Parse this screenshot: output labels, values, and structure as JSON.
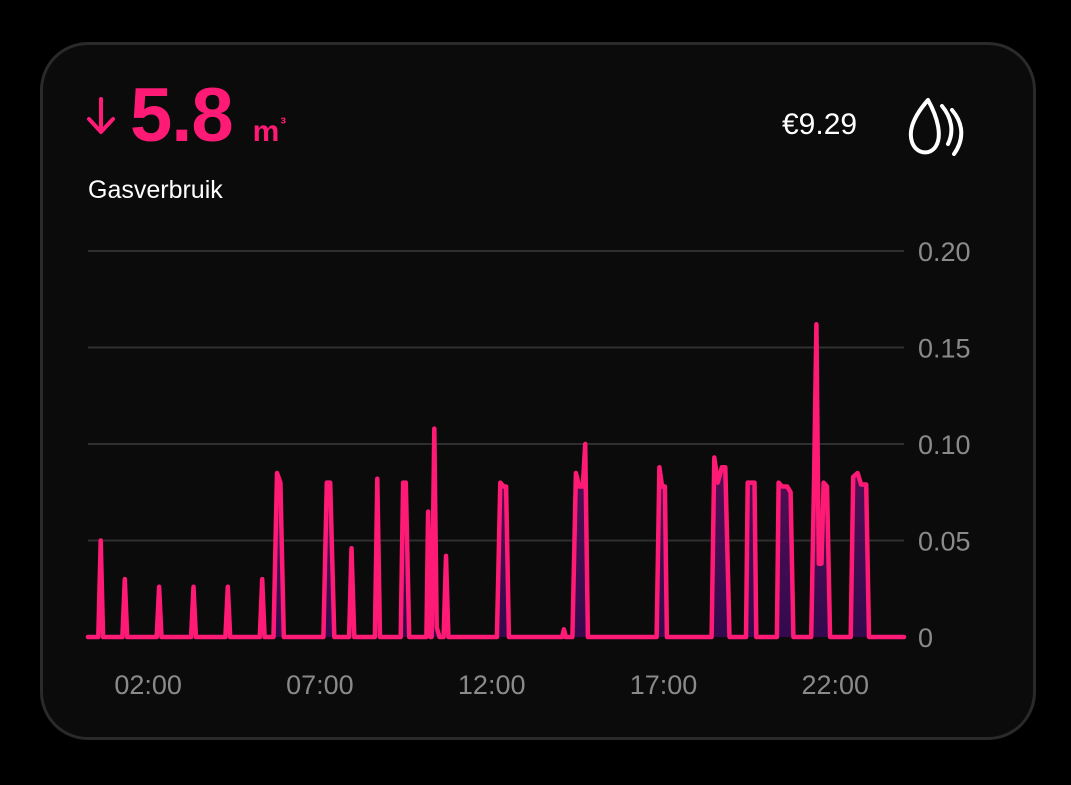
{
  "header": {
    "trend_icon": "arrow-down-icon",
    "value": "5.8",
    "unit": "m",
    "unit_sup": "³",
    "title": "Gasverbruik",
    "cost": "€9.29",
    "gas_icon": "gas-flame-icon"
  },
  "colors": {
    "accent": "#ff1a75",
    "fill_top": "#7a1266",
    "fill_bottom": "#3a0a5a",
    "grid": "#2f2f2f",
    "tick": "#8a8a8a"
  },
  "chart_data": {
    "type": "area",
    "x_unit": "hour",
    "xlim": [
      0.25,
      24
    ],
    "ylim": [
      0,
      0.2
    ],
    "yticks": [
      {
        "value": 0,
        "label": "0"
      },
      {
        "value": 0.05,
        "label": "0.05"
      },
      {
        "value": 0.1,
        "label": "0.10"
      },
      {
        "value": 0.15,
        "label": "0.15"
      },
      {
        "value": 0.2,
        "label": "0.20"
      }
    ],
    "xticks": [
      {
        "value": 2,
        "label": "02:00"
      },
      {
        "value": 7,
        "label": "07:00"
      },
      {
        "value": 12,
        "label": "12:00"
      },
      {
        "value": 17,
        "label": "17:00"
      },
      {
        "value": 22,
        "label": "22:00"
      }
    ],
    "grid": true,
    "series": [
      {
        "points": [
          [
            0.25,
            0
          ],
          [
            0.55,
            0
          ],
          [
            0.62,
            0.05
          ],
          [
            0.69,
            0
          ],
          [
            1.25,
            0
          ],
          [
            1.32,
            0.03
          ],
          [
            1.39,
            0
          ],
          [
            2.25,
            0
          ],
          [
            2.32,
            0.026
          ],
          [
            2.39,
            0
          ],
          [
            3.25,
            0
          ],
          [
            3.32,
            0.026
          ],
          [
            3.39,
            0
          ],
          [
            4.25,
            0
          ],
          [
            4.32,
            0.026
          ],
          [
            4.39,
            0
          ],
          [
            5.25,
            0
          ],
          [
            5.32,
            0.03
          ],
          [
            5.39,
            0
          ],
          [
            5.65,
            0
          ],
          [
            5.75,
            0.085
          ],
          [
            5.85,
            0.08
          ],
          [
            5.95,
            0
          ],
          [
            7.1,
            0
          ],
          [
            7.2,
            0.08
          ],
          [
            7.3,
            0.08
          ],
          [
            7.42,
            0
          ],
          [
            7.85,
            0
          ],
          [
            7.92,
            0.046
          ],
          [
            8.0,
            0
          ],
          [
            8.6,
            0
          ],
          [
            8.67,
            0.082
          ],
          [
            8.75,
            0
          ],
          [
            9.35,
            0
          ],
          [
            9.42,
            0.08
          ],
          [
            9.5,
            0.08
          ],
          [
            9.6,
            0
          ],
          [
            10.1,
            0
          ],
          [
            10.15,
            0.065
          ],
          [
            10.22,
            0
          ],
          [
            10.25,
            0
          ],
          [
            10.33,
            0.108
          ],
          [
            10.4,
            0.005
          ],
          [
            10.48,
            0
          ],
          [
            10.6,
            0
          ],
          [
            10.67,
            0.042
          ],
          [
            10.74,
            0
          ],
          [
            12.15,
            0
          ],
          [
            12.25,
            0.08
          ],
          [
            12.35,
            0.078
          ],
          [
            12.42,
            0.078
          ],
          [
            12.5,
            0
          ],
          [
            14.05,
            0
          ],
          [
            14.1,
            0.004
          ],
          [
            14.16,
            0
          ],
          [
            14.35,
            0
          ],
          [
            14.45,
            0.085
          ],
          [
            14.55,
            0.078
          ],
          [
            14.65,
            0.078
          ],
          [
            14.72,
            0.1
          ],
          [
            14.8,
            0
          ],
          [
            16.8,
            0
          ],
          [
            16.88,
            0.088
          ],
          [
            16.96,
            0.078
          ],
          [
            17.04,
            0.078
          ],
          [
            17.1,
            0
          ],
          [
            18.4,
            0
          ],
          [
            18.48,
            0.093
          ],
          [
            18.58,
            0.08
          ],
          [
            18.7,
            0.088
          ],
          [
            18.8,
            0.088
          ],
          [
            18.92,
            0
          ],
          [
            19.4,
            0
          ],
          [
            19.45,
            0.08
          ],
          [
            19.55,
            0.08
          ],
          [
            19.65,
            0.08
          ],
          [
            19.7,
            0
          ],
          [
            20.3,
            0
          ],
          [
            20.35,
            0.08
          ],
          [
            20.45,
            0.078
          ],
          [
            20.6,
            0.078
          ],
          [
            20.7,
            0.075
          ],
          [
            20.78,
            0
          ],
          [
            21.3,
            0
          ],
          [
            21.38,
            0.08
          ],
          [
            21.45,
            0.162
          ],
          [
            21.52,
            0.038
          ],
          [
            21.6,
            0.038
          ],
          [
            21.66,
            0.08
          ],
          [
            21.76,
            0.078
          ],
          [
            21.85,
            0
          ],
          [
            22.45,
            0
          ],
          [
            22.52,
            0.083
          ],
          [
            22.65,
            0.085
          ],
          [
            22.75,
            0.079
          ],
          [
            22.9,
            0.079
          ],
          [
            22.98,
            0
          ],
          [
            24.0,
            0
          ]
        ]
      }
    ]
  }
}
